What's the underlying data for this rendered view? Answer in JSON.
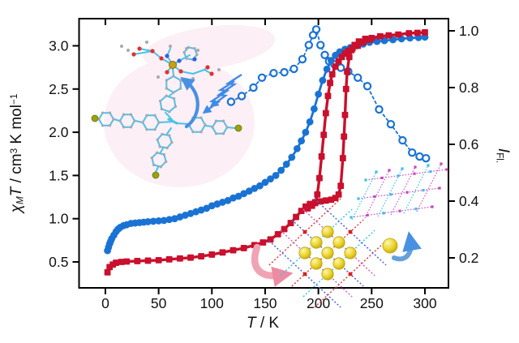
{
  "figure": {
    "kind": "scientific dual-axis chart with molecular illustrations",
    "background": "#ffffff"
  },
  "axes": {
    "left_title": {
      "parts": [
        "χ",
        "M",
        "T",
        " / cm",
        "3",
        " K mol",
        "−1"
      ]
    },
    "bottom_title": {
      "parts": [
        "T",
        " / K"
      ]
    },
    "right_title": {
      "parts": [
        "I",
        "Fl."
      ]
    }
  },
  "chart_data": {
    "type": "line",
    "title": "",
    "xlabel": "T / K",
    "ylabel_left": "χMT / cm3 K mol−1",
    "ylabel_right": "IFl.",
    "grid": false,
    "x_range": [
      -24.7,
      322.1
    ],
    "y_left_range": [
      0.2,
      3.314
    ],
    "y_right_range": [
      0.0943,
      1.0429
    ],
    "x_ticks": [
      "0",
      "50",
      "100",
      "150",
      "200",
      "250",
      "300"
    ],
    "y_left_ticks": [
      "0.5",
      "1.0",
      "1.5",
      "2.0",
      "2.5",
      "3.0"
    ],
    "y_right_ticks": [
      "0.2",
      "0.4",
      "0.6",
      "0.8",
      "1.0"
    ],
    "frame_color": "#000000",
    "label_color": "#111111",
    "series": [
      {
        "name": "open-circles-fluorescence",
        "axis": "right",
        "marker": "open-circle",
        "line": "dashed",
        "color": "#1a73d4",
        "x": [
          118,
          128,
          139,
          147,
          158,
          168,
          177,
          185,
          191,
          195,
          198,
          202,
          206,
          210,
          215,
          221,
          228,
          237,
          246,
          257,
          268,
          279,
          288,
          295,
          301
        ],
        "y": [
          0.75,
          0.77,
          0.8,
          0.835,
          0.851,
          0.854,
          0.866,
          0.9,
          0.95,
          0.985,
          1.005,
          0.95,
          0.915,
          0.893,
          0.882,
          0.87,
          0.857,
          0.835,
          0.805,
          0.723,
          0.671,
          0.614,
          0.571,
          0.557,
          0.551
        ]
      },
      {
        "name": "blue-filled-circles-chiMT",
        "axis": "left",
        "marker": "circle",
        "line": "solid",
        "color": "#1a73d4",
        "x": [
          2,
          3,
          4,
          5,
          6,
          8,
          10,
          12,
          14,
          17,
          20,
          24,
          28,
          32,
          36,
          40,
          45,
          50,
          55,
          60,
          65,
          70,
          75,
          80,
          85,
          90,
          95,
          100,
          105,
          110,
          115,
          120,
          125,
          130,
          135,
          140,
          145,
          150,
          155,
          160,
          165,
          170,
          175,
          180,
          184,
          188,
          192,
          196,
          200,
          204,
          208,
          212,
          216,
          220,
          225,
          230,
          236,
          242,
          248,
          255,
          262,
          270,
          278,
          286,
          294,
          300
        ],
        "y": [
          0.63,
          0.67,
          0.71,
          0.74,
          0.77,
          0.81,
          0.85,
          0.88,
          0.9,
          0.92,
          0.93,
          0.945,
          0.95,
          0.955,
          0.96,
          0.965,
          0.97,
          0.975,
          0.98,
          0.99,
          1.0,
          1.02,
          1.04,
          1.06,
          1.08,
          1.1,
          1.12,
          1.15,
          1.17,
          1.19,
          1.21,
          1.24,
          1.26,
          1.29,
          1.32,
          1.35,
          1.38,
          1.42,
          1.46,
          1.5,
          1.56,
          1.63,
          1.71,
          1.81,
          1.9,
          2.0,
          2.12,
          2.27,
          2.44,
          2.6,
          2.73,
          2.83,
          2.89,
          2.93,
          2.96,
          2.98,
          3.0,
          3.02,
          3.04,
          3.05,
          3.06,
          3.07,
          3.08,
          3.09,
          3.095,
          3.1
        ]
      },
      {
        "name": "red-squares-chiMT-heating",
        "axis": "left",
        "marker": "square",
        "line": "solid",
        "color": "#c9102d",
        "x": [
          2,
          4,
          7,
          10,
          15,
          20,
          30,
          40,
          50,
          60,
          70,
          80,
          90,
          100,
          110,
          120,
          130,
          140,
          148,
          155,
          162,
          168,
          174,
          179,
          184,
          188,
          192,
          197,
          202,
          207,
          212,
          216,
          219,
          221,
          223,
          224,
          225,
          226,
          227,
          229,
          231,
          234,
          238,
          244,
          250,
          258,
          266,
          275,
          285,
          293,
          300
        ],
        "y": [
          0.38,
          0.44,
          0.47,
          0.49,
          0.5,
          0.505,
          0.51,
          0.515,
          0.52,
          0.53,
          0.54,
          0.55,
          0.565,
          0.585,
          0.61,
          0.635,
          0.66,
          0.695,
          0.725,
          0.76,
          0.82,
          0.88,
          0.95,
          1.02,
          1.09,
          1.14,
          1.17,
          1.19,
          1.2,
          1.21,
          1.22,
          1.24,
          1.28,
          1.38,
          1.7,
          1.95,
          2.2,
          2.5,
          2.7,
          2.87,
          2.95,
          3.01,
          3.05,
          3.08,
          3.09,
          3.11,
          3.12,
          3.13,
          3.145,
          3.15,
          3.155
        ]
      },
      {
        "name": "red-squares-chiMT-cooling",
        "axis": "left",
        "marker": "square",
        "line": "solid",
        "color": "#c9102d",
        "x": [
          248,
          242,
          237,
          232,
          228,
          225,
          222,
          219,
          216,
          213,
          211,
          209,
          207,
          205,
          203,
          201,
          199,
          197,
          194,
          190
        ],
        "y": [
          3.07,
          3.04,
          3.0,
          2.97,
          2.94,
          2.91,
          2.87,
          2.82,
          2.76,
          2.67,
          2.57,
          2.42,
          2.22,
          1.97,
          1.72,
          1.47,
          1.28,
          1.18,
          1.15,
          1.12
        ]
      }
    ]
  },
  "decorations": {
    "molecule": "metal-complex-molecule",
    "excitation_bolt_color": "#3f8be8",
    "curved_arrow_color": "#4a90e2",
    "pink_arrow_color": "#f0a3b4",
    "guest_sphere_color": "#ecd42c",
    "blob_color": "#fceff5",
    "lattice_colors": [
      "#d84040",
      "#3fc0e8",
      "#4a63d8",
      "#cf5fc8"
    ]
  }
}
